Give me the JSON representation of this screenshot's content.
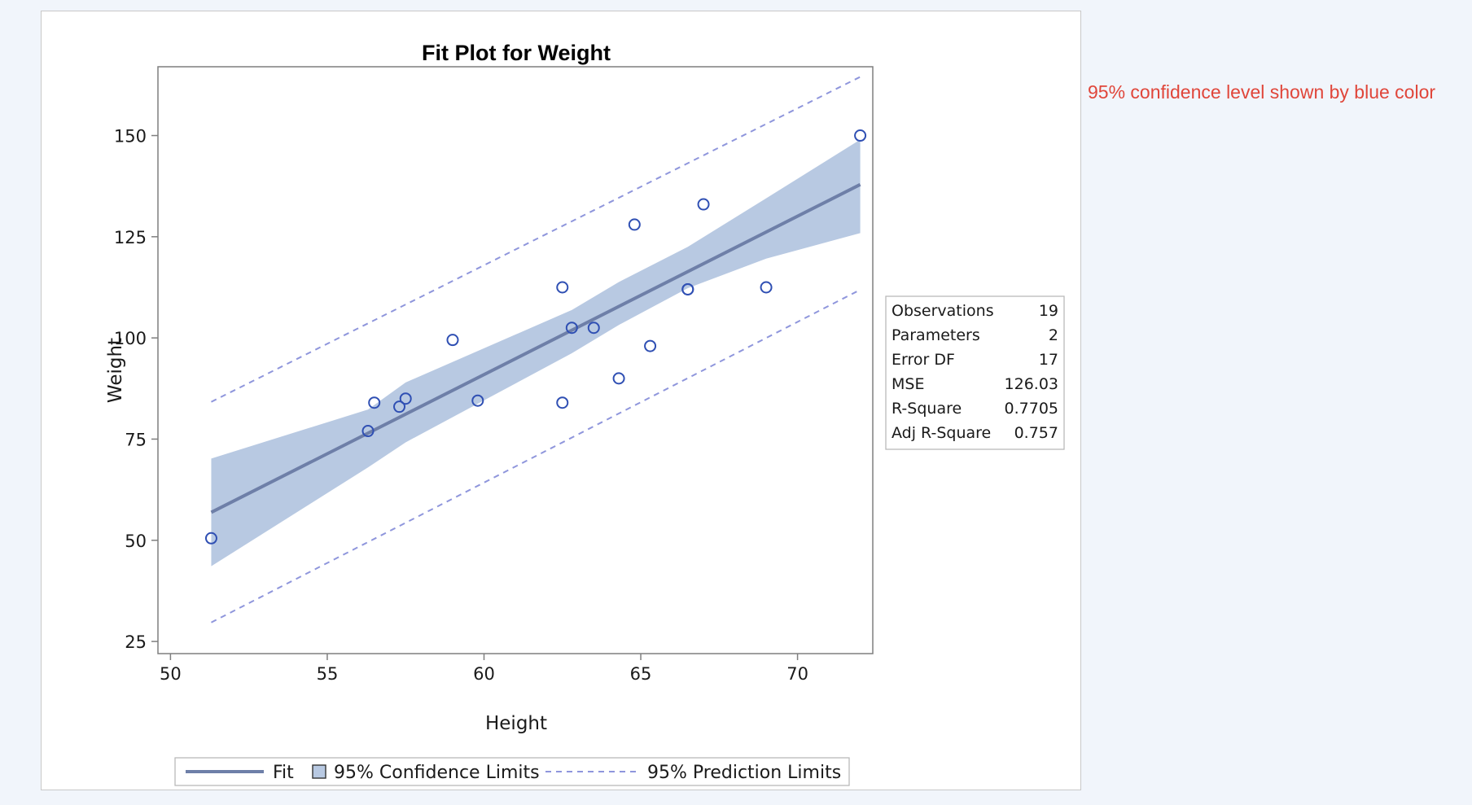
{
  "annotation": "95% confidence level shown by blue color",
  "chart_data": {
    "type": "scatter",
    "title": "Fit Plot for Weight",
    "xlabel": "Height",
    "ylabel": "Weight",
    "xlim": [
      49.6,
      72.4
    ],
    "ylim": [
      22,
      167
    ],
    "xticks": [
      50,
      55,
      60,
      65,
      70
    ],
    "yticks": [
      25,
      50,
      75,
      100,
      125,
      150
    ],
    "points": [
      {
        "x": 51.3,
        "y": 50.5
      },
      {
        "x": 56.3,
        "y": 77.0
      },
      {
        "x": 56.5,
        "y": 84.0
      },
      {
        "x": 57.3,
        "y": 83.0
      },
      {
        "x": 57.5,
        "y": 85.0
      },
      {
        "x": 59.0,
        "y": 99.5
      },
      {
        "x": 59.8,
        "y": 84.5
      },
      {
        "x": 62.5,
        "y": 112.5
      },
      {
        "x": 62.5,
        "y": 84.0
      },
      {
        "x": 62.8,
        "y": 102.5
      },
      {
        "x": 63.5,
        "y": 102.5
      },
      {
        "x": 64.3,
        "y": 90.0
      },
      {
        "x": 64.8,
        "y": 128.0
      },
      {
        "x": 65.3,
        "y": 98.0
      },
      {
        "x": 66.5,
        "y": 112.0
      },
      {
        "x": 66.5,
        "y": 112.0
      },
      {
        "x": 67.0,
        "y": 133.0
      },
      {
        "x": 69.0,
        "y": 112.5
      },
      {
        "x": 72.0,
        "y": 150.0
      }
    ],
    "fit": {
      "x": [
        51.3,
        72.0
      ],
      "y": [
        56.9,
        137.9
      ]
    },
    "confidence_limits": {
      "x": [
        51.3,
        56.3,
        57.5,
        62.8,
        64.3,
        66.5,
        69.0,
        72.0
      ],
      "lower": [
        43.6,
        68.0,
        74.2,
        96.2,
        103.2,
        112.3,
        119.6,
        125.9
      ],
      "upper": [
        70.2,
        82.3,
        89.0,
        106.9,
        113.8,
        122.5,
        134.5,
        149.0
      ]
    },
    "prediction_limits": {
      "x": [
        51.3,
        72.0
      ],
      "lower": [
        29.7,
        111.9
      ],
      "upper": [
        84.2,
        164.5
      ]
    },
    "legend": {
      "position": "bottom",
      "items": [
        {
          "kind": "line",
          "label": "Fit"
        },
        {
          "kind": "box",
          "label": "95% Confidence Limits"
        },
        {
          "kind": "dash",
          "label": "95% Prediction Limits"
        }
      ]
    },
    "stats_table": {
      "position": "right",
      "rows": [
        {
          "label": "Observations",
          "value": "19"
        },
        {
          "label": "Parameters",
          "value": "2"
        },
        {
          "label": "Error DF",
          "value": "17"
        },
        {
          "label": "MSE",
          "value": "126.03"
        },
        {
          "label": "R-Square",
          "value": "0.7705"
        },
        {
          "label": "Adj R-Square",
          "value": "0.757"
        }
      ]
    },
    "colors": {
      "fit_line": "#6e7fa8",
      "confidence_band": "#b8c9e2",
      "prediction_line": "#8f96dc",
      "marker": "#2f4fb3",
      "frame": "#7f7f7f",
      "text": "#1a1a1a"
    }
  }
}
